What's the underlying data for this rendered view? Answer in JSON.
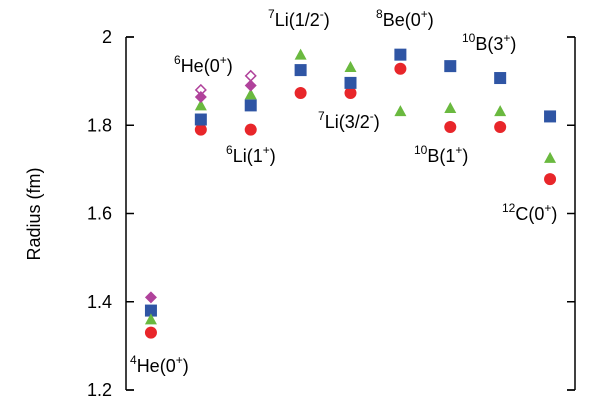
{
  "chart_data": {
    "type": "scatter",
    "y_label": "Radius (fm)",
    "categories": [
      null,
      null,
      null,
      null,
      null,
      null,
      null,
      null,
      null
    ],
    "ylim": [
      1.2,
      2
    ],
    "yticks": [
      1.2,
      1.4,
      1.6,
      1.8,
      2
    ],
    "series": [
      {
        "marker": "circle",
        "color": "#e8262a",
        "values": [
          1.33,
          1.79,
          1.79,
          1.873,
          1.873,
          1.928,
          1.796,
          1.796,
          1.678
        ]
      },
      {
        "marker": "square",
        "color": "#2f55a4",
        "values": [
          1.38,
          1.813,
          1.845,
          1.925,
          1.896,
          1.96,
          1.934,
          1.907,
          1.82
        ]
      },
      {
        "marker": "triangle",
        "color": "#6ab93f",
        "values": [
          1.36,
          1.845,
          1.87,
          1.96,
          1.932,
          1.832,
          1.839,
          1.832,
          1.726
        ]
      },
      {
        "marker": "diamond",
        "color": "#b0429b",
        "values": [
          1.41,
          1.864,
          1.89,
          null,
          null,
          null,
          null,
          null,
          null
        ]
      },
      {
        "marker": "diamond-open",
        "color": "#b0429b",
        "values": [
          null,
          1.88,
          1.912,
          null,
          null,
          null,
          null,
          null,
          null
        ]
      }
    ],
    "annotations": [
      {
        "segments": [
          {
            "text": "4",
            "sup": true
          },
          {
            "text": "He(0"
          },
          {
            "text": "+",
            "sup": true
          },
          {
            "text": ")"
          }
        ]
      },
      {
        "segments": [
          {
            "text": "6",
            "sup": true
          },
          {
            "text": "He(0"
          },
          {
            "text": "+",
            "sup": true
          },
          {
            "text": ")"
          }
        ]
      },
      {
        "segments": [
          {
            "text": "6",
            "sup": true
          },
          {
            "text": "Li(1"
          },
          {
            "text": "+",
            "sup": true
          },
          {
            "text": ")"
          }
        ]
      },
      {
        "segments": [
          {
            "text": "7",
            "sup": true
          },
          {
            "text": "Li(1/2"
          },
          {
            "text": "-",
            "sup": true
          },
          {
            "text": ")"
          }
        ]
      },
      {
        "segments": [
          {
            "text": "8",
            "sup": true
          },
          {
            "text": "Be(0"
          },
          {
            "text": "+",
            "sup": true
          },
          {
            "text": ")"
          }
        ]
      },
      {
        "segments": [
          {
            "text": "10",
            "sup": true
          },
          {
            "text": "B(3"
          },
          {
            "text": "+",
            "sup": true
          },
          {
            "text": ")"
          }
        ]
      },
      {
        "segments": [
          {
            "text": "7",
            "sup": true
          },
          {
            "text": "Li(3/2"
          },
          {
            "text": "-",
            "sup": true
          },
          {
            "text": ")"
          }
        ]
      },
      {
        "segments": [
          {
            "text": "10",
            "sup": true
          },
          {
            "text": "B(1"
          },
          {
            "text": "+",
            "sup": true
          },
          {
            "text": ")"
          }
        ]
      },
      {
        "segments": [
          {
            "text": "12",
            "sup": true
          },
          {
            "text": "C(0"
          },
          {
            "text": "+",
            "sup": true
          },
          {
            "text": ")"
          }
        ]
      }
    ]
  }
}
